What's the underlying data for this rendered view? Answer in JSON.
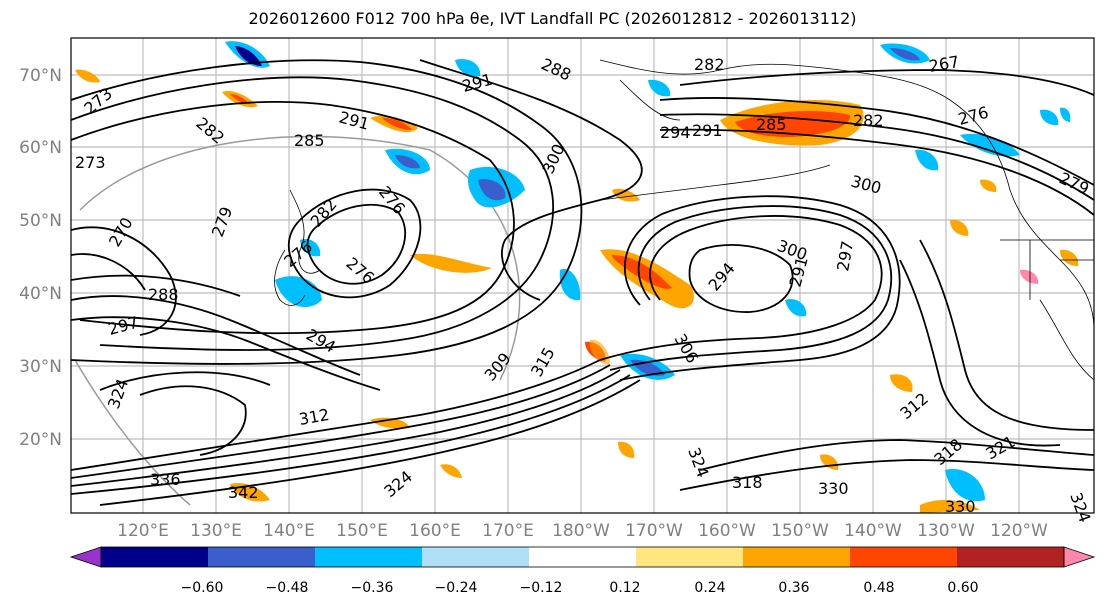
{
  "title": "2026012600 F012 700 hPa θe, IVT Landfall PC (2026012812 - 2026013112)",
  "map": {
    "lat_labels": [
      "70°N",
      "60°N",
      "50°N",
      "40°N",
      "30°N",
      "20°N"
    ],
    "lon_labels": [
      "120°E",
      "130°E",
      "140°E",
      "150°E",
      "160°E",
      "170°E",
      "180°W",
      "170°W",
      "160°W",
      "150°W",
      "140°W",
      "130°W",
      "120°W"
    ]
  },
  "contour_labels": [
    "273",
    "273",
    "282",
    "285",
    "288",
    "291",
    "291",
    "282",
    "267",
    "276",
    "279",
    "294",
    "291",
    "285",
    "282",
    "300",
    "300",
    "279",
    "282",
    "276",
    "276",
    "270",
    "276",
    "288",
    "297",
    "294",
    "300",
    "294",
    "291",
    "297",
    "306",
    "309",
    "315",
    "312",
    "324",
    "318",
    "324",
    "330",
    "312",
    "318",
    "321",
    "324",
    "336",
    "342",
    "324",
    "330"
  ],
  "colorbar": {
    "ticks": [
      "−0.60",
      "−0.48",
      "−0.36",
      "−0.24",
      "−0.12",
      "0.12",
      "0.24",
      "0.36",
      "0.48",
      "0.60"
    ],
    "colors": [
      "#9933cc",
      "#00008b",
      "#3a5fcd",
      "#00bfff",
      "#b0e0f8",
      "#ffffff",
      "#ffe680",
      "#ffa500",
      "#ff4500",
      "#b22222",
      "#ff88aa"
    ]
  }
}
